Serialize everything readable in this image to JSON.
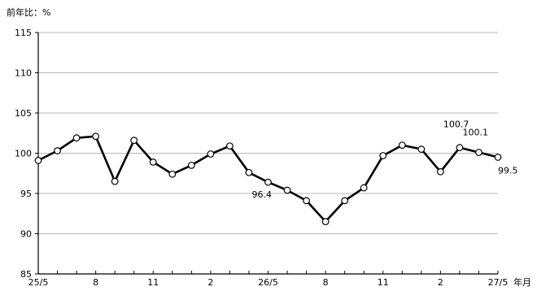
{
  "chart_data": {
    "type": "line",
    "ylabel": "前年比：%",
    "xlabel": "年月",
    "ylim": [
      85,
      115
    ],
    "y_ticks": [
      85,
      90,
      95,
      100,
      105,
      110,
      115
    ],
    "grid": true,
    "x_tick_labels": [
      "25/5",
      "8",
      "11",
      "2",
      "26/5",
      "8",
      "11",
      "2",
      "27/5"
    ],
    "series": [
      {
        "values": [
          99.1,
          100.3,
          101.9,
          102.1,
          96.5,
          101.6,
          98.9,
          97.4,
          98.5,
          99.9,
          100.9,
          97.6,
          96.4,
          95.4,
          94.1,
          91.5,
          94.1,
          95.7,
          99.7,
          101.0,
          100.5,
          97.7,
          100.7,
          100.1,
          99.5
        ]
      }
    ],
    "data_labels": [
      {
        "index": 12,
        "text": "96.4"
      },
      {
        "index": 22,
        "text": "100.7"
      },
      {
        "index": 23,
        "text": "100.1"
      },
      {
        "index": 24,
        "text": "99.5"
      }
    ],
    "colors": {
      "line": "#000000",
      "marker_fill": "#ffffff",
      "grid": "#a0a0a0",
      "axis": "#000000"
    }
  }
}
